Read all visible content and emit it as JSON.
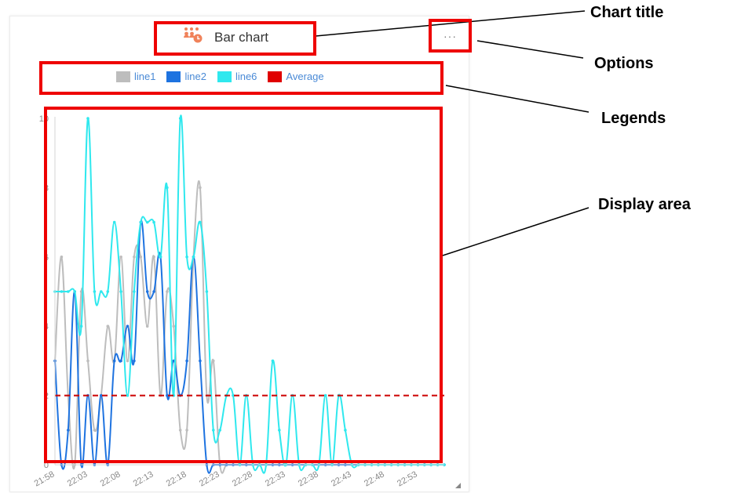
{
  "widget": {
    "title": "Bar chart",
    "options_label": "···",
    "title_icon": "group-icon"
  },
  "legend": [
    {
      "label": "line1",
      "color": "#bdbdbd"
    },
    {
      "label": "line2",
      "color": "#1e73e0"
    },
    {
      "label": "line6",
      "color": "#2fe8ee"
    },
    {
      "label": "Average",
      "color": "#e00000"
    }
  ],
  "annotations": {
    "chart_title": "Chart title",
    "options": "Options",
    "legends": "Legends",
    "display_area": "Display area"
  },
  "chart_data": {
    "type": "line",
    "title": "Bar chart",
    "xlabel": "",
    "ylabel": "",
    "ylim": [
      0,
      10
    ],
    "yticks": [
      0,
      2,
      4,
      6,
      8,
      10
    ],
    "ytick_labels": [
      "0",
      "2",
      "4",
      "6",
      "8",
      "10"
    ],
    "xtick_labels": [
      "21:58",
      "22:03",
      "22:08",
      "22:13",
      "22:18",
      "22:23",
      "22:28",
      "22:33",
      "22:38",
      "22:43",
      "22:48",
      "22:53"
    ],
    "xtick_index": [
      0,
      5,
      10,
      15,
      20,
      25,
      30,
      35,
      40,
      45,
      50,
      55
    ],
    "grid": false,
    "legend_position": "top",
    "series": [
      {
        "name": "line1",
        "color": "#bdbdbd",
        "values": [
          3,
          6,
          2,
          0,
          5,
          3,
          1,
          2,
          4,
          3,
          6,
          3,
          6,
          6,
          4,
          6,
          2,
          5,
          4,
          1,
          1,
          6,
          8,
          2,
          3,
          0,
          0,
          0,
          0,
          0,
          0,
          0,
          0,
          0,
          0,
          0,
          0,
          0,
          0,
          0,
          0,
          0,
          0,
          0,
          0,
          0,
          0,
          0,
          0,
          0,
          0,
          0,
          0,
          0,
          0,
          0,
          0,
          0,
          0,
          0
        ]
      },
      {
        "name": "line2",
        "color": "#1e73e0",
        "values": [
          3,
          0,
          1,
          5,
          0,
          2,
          0,
          2,
          0,
          3,
          3,
          4,
          3,
          7,
          5,
          5,
          6,
          2,
          3,
          2,
          3,
          6,
          3,
          0,
          0,
          0,
          0,
          0,
          0,
          0,
          0,
          0,
          0,
          0,
          0,
          0,
          0,
          0,
          0,
          0,
          0,
          0,
          0,
          0,
          0,
          0,
          0,
          0,
          0,
          0,
          0,
          0,
          0,
          0,
          0,
          0,
          0,
          0,
          0,
          0
        ]
      },
      {
        "name": "line6",
        "color": "#2fe8ee",
        "values": [
          5,
          5,
          5,
          5,
          4,
          10,
          5,
          5,
          5,
          7,
          5,
          2,
          5,
          7,
          7,
          7,
          6,
          8,
          2,
          10,
          6,
          6,
          7,
          5,
          1,
          1,
          2,
          2,
          0,
          2,
          0,
          0,
          0,
          3,
          1,
          0,
          2,
          0,
          0,
          0,
          0,
          2,
          0,
          2,
          1,
          0,
          0,
          0,
          0,
          0,
          0,
          0,
          0,
          0,
          0,
          0,
          0,
          0,
          0,
          0
        ]
      },
      {
        "name": "Average",
        "color": "#cc0000",
        "dashed": true,
        "values": [
          2,
          2,
          2,
          2,
          2,
          2,
          2,
          2,
          2,
          2,
          2,
          2,
          2,
          2,
          2,
          2,
          2,
          2,
          2,
          2,
          2,
          2,
          2,
          2,
          2,
          2,
          2,
          2,
          2,
          2,
          2,
          2,
          2,
          2,
          2,
          2,
          2,
          2,
          2,
          2,
          2,
          2,
          2,
          2,
          2,
          2,
          2,
          2,
          2,
          2,
          2,
          2,
          2,
          2,
          2,
          2,
          2,
          2,
          2,
          2
        ]
      }
    ]
  }
}
